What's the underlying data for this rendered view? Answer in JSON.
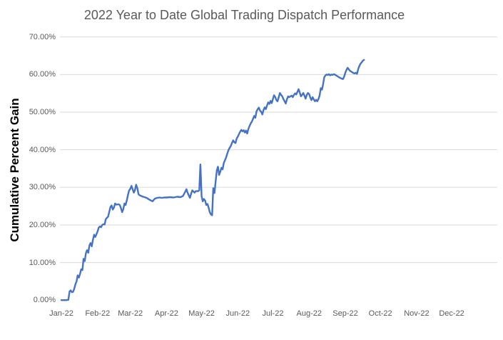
{
  "colors": {
    "background": "#FFFFFF",
    "line": "#4472C4",
    "gridline": "#D9D9D9",
    "title_text": "#595959",
    "tick_text": "#595959",
    "axis_title_text": "#000000"
  },
  "chart_data": {
    "type": "line",
    "title": "2022 Year to Date Global Trading Dispatch Performance",
    "xlabel": "",
    "ylabel": "Cumulative Percent Gain",
    "legend": "none",
    "grid": "horizontal gridlines at 10%-70%, none at 0%",
    "ylim": [
      0,
      70
    ],
    "y_tick_labels": [
      "0.00%",
      "10.00%",
      "20.00%",
      "30.00%",
      "40.00%",
      "50.00%",
      "60.00%",
      "70.00%"
    ],
    "y_tick_values": [
      0,
      10,
      20,
      30,
      40,
      50,
      60,
      70
    ],
    "x_tick_labels": [
      "Jan-22",
      "Feb-22",
      "Mar-22",
      "Apr-22",
      "May-22",
      "Jun-22",
      "Jul-22",
      "Aug-22",
      "Sep-22",
      "Oct-22",
      "Nov-22",
      "Dec-22"
    ],
    "x_axis": {
      "unit": "day of year 2022",
      "range_days": [
        1,
        366
      ],
      "month_start_days": [
        1,
        32,
        60,
        91,
        121,
        152,
        182,
        213,
        244,
        274,
        305,
        335
      ],
      "data_ends_mid_september": true
    },
    "series": [
      {
        "name": "Cumulative Percent Gain",
        "color": "#4472C4",
        "points": [
          [
            1,
            0.0
          ],
          [
            3,
            0.0
          ],
          [
            5,
            0.0
          ],
          [
            7,
            0.1
          ],
          [
            8,
            2.3
          ],
          [
            9,
            2.6
          ],
          [
            10,
            2.1
          ],
          [
            11,
            2.2
          ],
          [
            12,
            3.0
          ],
          [
            13,
            4.2
          ],
          [
            14,
            5.0
          ],
          [
            15,
            6.6
          ],
          [
            16,
            6.0
          ],
          [
            17,
            7.0
          ],
          [
            18,
            8.2
          ],
          [
            19,
            8.0
          ],
          [
            20,
            11.0
          ],
          [
            21,
            10.4
          ],
          [
            22,
            12.5
          ],
          [
            23,
            13.3
          ],
          [
            24,
            12.6
          ],
          [
            25,
            14.5
          ],
          [
            26,
            15.2
          ],
          [
            27,
            14.3
          ],
          [
            28,
            16.0
          ],
          [
            29,
            17.4
          ],
          [
            30,
            16.8
          ],
          [
            31,
            17.5
          ],
          [
            32,
            18.3
          ],
          [
            33,
            19.3
          ],
          [
            34,
            19.6
          ],
          [
            35,
            19.4
          ],
          [
            36,
            20.0
          ],
          [
            37,
            20.2
          ],
          [
            38,
            20.1
          ],
          [
            39,
            21.5
          ],
          [
            40,
            21.9
          ],
          [
            41,
            22.2
          ],
          [
            43,
            24.8
          ],
          [
            44,
            25.2
          ],
          [
            45,
            24.1
          ],
          [
            46,
            24.6
          ],
          [
            47,
            25.7
          ],
          [
            48,
            25.4
          ],
          [
            50,
            25.5
          ],
          [
            51,
            25.3
          ],
          [
            52,
            24.5
          ],
          [
            53,
            23.4
          ],
          [
            54,
            24.2
          ],
          [
            55,
            25.7
          ],
          [
            56,
            25.3
          ],
          [
            57,
            26.5
          ],
          [
            58,
            28.0
          ],
          [
            59,
            29.2
          ],
          [
            60,
            29.6
          ],
          [
            61,
            30.4
          ],
          [
            62,
            29.5
          ],
          [
            63,
            28.6
          ],
          [
            64,
            29.3
          ],
          [
            65,
            30.7
          ],
          [
            66,
            29.8
          ],
          [
            67,
            28.2
          ],
          [
            68,
            27.9
          ],
          [
            70,
            27.6
          ],
          [
            72,
            27.4
          ],
          [
            74,
            27.2
          ],
          [
            76,
            26.8
          ],
          [
            79,
            26.3
          ],
          [
            81,
            27.0
          ],
          [
            83,
            27.2
          ],
          [
            85,
            27.3
          ],
          [
            87,
            27.2
          ],
          [
            89,
            27.3
          ],
          [
            91,
            27.3
          ],
          [
            94,
            27.4
          ],
          [
            97,
            27.3
          ],
          [
            100,
            27.5
          ],
          [
            103,
            27.4
          ],
          [
            105,
            27.7
          ],
          [
            107,
            28.8
          ],
          [
            108,
            29.5
          ],
          [
            109,
            28.6
          ],
          [
            110,
            27.9
          ],
          [
            111,
            27.2
          ],
          [
            112,
            28.3
          ],
          [
            113,
            29.2
          ],
          [
            114,
            28.9
          ],
          [
            115,
            28.6
          ],
          [
            116,
            29.0
          ],
          [
            118,
            29.0
          ],
          [
            119,
            29.2
          ],
          [
            120,
            36.1
          ],
          [
            121,
            27.6
          ],
          [
            122,
            26.3
          ],
          [
            123,
            26.9
          ],
          [
            124,
            26.5
          ],
          [
            125,
            25.3
          ],
          [
            126,
            25.6
          ],
          [
            127,
            24.6
          ],
          [
            128,
            23.4
          ],
          [
            129,
            22.8
          ],
          [
            130,
            22.6
          ],
          [
            131,
            29.8
          ],
          [
            132,
            28.5
          ],
          [
            133,
            31.5
          ],
          [
            134,
            34.5
          ],
          [
            135,
            35.5
          ],
          [
            136,
            33.3
          ],
          [
            137,
            34.2
          ],
          [
            138,
            35.2
          ],
          [
            139,
            34.8
          ],
          [
            140,
            36.5
          ],
          [
            141,
            37.2
          ],
          [
            142,
            38.0
          ],
          [
            143,
            39.0
          ],
          [
            144,
            39.9
          ],
          [
            145,
            40.5
          ],
          [
            146,
            41.0
          ],
          [
            147,
            41.8
          ],
          [
            148,
            42.5
          ],
          [
            149,
            42.0
          ],
          [
            150,
            41.8
          ],
          [
            151,
            43.0
          ],
          [
            152,
            43.5
          ],
          [
            153,
            44.2
          ],
          [
            154,
            44.8
          ],
          [
            155,
            45.3
          ],
          [
            156,
            44.9
          ],
          [
            157,
            45.2
          ],
          [
            158,
            44.6
          ],
          [
            159,
            45.1
          ],
          [
            160,
            44.3
          ],
          [
            161,
            45.5
          ],
          [
            162,
            46.3
          ],
          [
            163,
            47.0
          ],
          [
            164,
            47.5
          ],
          [
            165,
            48.2
          ],
          [
            166,
            49.0
          ],
          [
            167,
            48.5
          ],
          [
            168,
            50.2
          ],
          [
            169,
            50.8
          ],
          [
            170,
            51.2
          ],
          [
            171,
            50.4
          ],
          [
            172,
            50.1
          ],
          [
            173,
            49.4
          ],
          [
            174,
            50.6
          ],
          [
            175,
            51.3
          ],
          [
            176,
            50.8
          ],
          [
            177,
            51.8
          ],
          [
            178,
            52.6
          ],
          [
            179,
            52.2
          ],
          [
            180,
            53.0
          ],
          [
            181,
            52.4
          ],
          [
            183,
            54.5
          ],
          [
            184,
            54.0
          ],
          [
            185,
            53.2
          ],
          [
            186,
            52.9
          ],
          [
            187,
            54.0
          ],
          [
            188,
            55.1
          ],
          [
            189,
            54.6
          ],
          [
            190,
            54.2
          ],
          [
            191,
            53.5
          ],
          [
            192,
            52.9
          ],
          [
            193,
            52.3
          ],
          [
            194,
            53.4
          ],
          [
            195,
            54.2
          ],
          [
            196,
            54.0
          ],
          [
            198,
            54.4
          ],
          [
            199,
            54.0
          ],
          [
            200,
            54.6
          ],
          [
            201,
            55.0
          ],
          [
            202,
            54.7
          ],
          [
            203,
            55.4
          ],
          [
            204,
            56.1
          ],
          [
            205,
            55.2
          ],
          [
            206,
            54.2
          ],
          [
            207,
            54.6
          ],
          [
            208,
            55.1
          ],
          [
            209,
            54.4
          ],
          [
            210,
            53.6
          ],
          [
            211,
            54.6
          ],
          [
            212,
            55.1
          ],
          [
            213,
            54.8
          ],
          [
            214,
            53.9
          ],
          [
            215,
            53.2
          ],
          [
            216,
            54.0
          ],
          [
            217,
            53.4
          ],
          [
            218,
            52.9
          ],
          [
            219,
            53.3
          ],
          [
            220,
            52.9
          ],
          [
            221,
            53.5
          ],
          [
            222,
            54.5
          ],
          [
            223,
            56.4
          ],
          [
            224,
            56.0
          ],
          [
            225,
            57.5
          ],
          [
            226,
            59.3
          ],
          [
            227,
            59.8
          ],
          [
            228,
            60.0
          ],
          [
            229,
            59.9
          ],
          [
            230,
            60.1
          ],
          [
            231,
            59.8
          ],
          [
            232,
            60.0
          ],
          [
            233,
            59.9
          ],
          [
            234,
            60.1
          ],
          [
            235,
            60.0
          ],
          [
            236,
            59.8
          ],
          [
            237,
            59.6
          ],
          [
            239,
            59.2
          ],
          [
            241,
            58.9
          ],
          [
            242,
            58.8
          ],
          [
            243,
            59.5
          ],
          [
            244,
            60.5
          ],
          [
            245,
            61.3
          ],
          [
            246,
            61.8
          ],
          [
            247,
            61.4
          ],
          [
            248,
            61.0
          ],
          [
            249,
            60.8
          ],
          [
            250,
            60.6
          ],
          [
            251,
            60.4
          ],
          [
            252,
            60.3
          ],
          [
            253,
            60.5
          ],
          [
            254,
            60.2
          ],
          [
            255,
            61.5
          ],
          [
            256,
            62.3
          ],
          [
            257,
            62.9
          ],
          [
            258,
            63.3
          ],
          [
            259,
            63.7
          ],
          [
            260,
            63.9
          ]
        ]
      }
    ]
  }
}
